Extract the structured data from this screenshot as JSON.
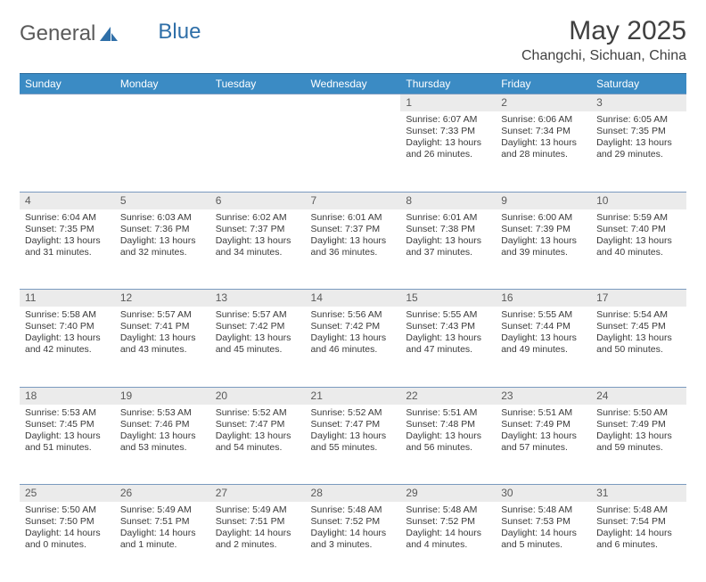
{
  "logo": {
    "text_a": "General",
    "text_b": "Blue"
  },
  "title": "May 2025",
  "location": "Changchi, Sichuan, China",
  "colors": {
    "header_bg": "#3b8bc4",
    "header_text": "#ffffff",
    "daynum_bg": "#ebebeb",
    "daynum_text": "#5a5a5a",
    "body_text": "#3a3a3a",
    "row_divider": "#7a9abf",
    "logo_gray": "#5a5a5a",
    "logo_blue": "#2f6fa8"
  },
  "typography": {
    "month_title_size": 30,
    "location_size": 16,
    "header_size": 12,
    "daynum_size": 12,
    "cell_size": 10.5
  },
  "weekdays": [
    "Sunday",
    "Monday",
    "Tuesday",
    "Wednesday",
    "Thursday",
    "Friday",
    "Saturday"
  ],
  "weeks": [
    [
      null,
      null,
      null,
      null,
      {
        "n": "1",
        "sr": "Sunrise: 6:07 AM",
        "ss": "Sunset: 7:33 PM",
        "dl": "Daylight: 13 hours and 26 minutes."
      },
      {
        "n": "2",
        "sr": "Sunrise: 6:06 AM",
        "ss": "Sunset: 7:34 PM",
        "dl": "Daylight: 13 hours and 28 minutes."
      },
      {
        "n": "3",
        "sr": "Sunrise: 6:05 AM",
        "ss": "Sunset: 7:35 PM",
        "dl": "Daylight: 13 hours and 29 minutes."
      }
    ],
    [
      {
        "n": "4",
        "sr": "Sunrise: 6:04 AM",
        "ss": "Sunset: 7:35 PM",
        "dl": "Daylight: 13 hours and 31 minutes."
      },
      {
        "n": "5",
        "sr": "Sunrise: 6:03 AM",
        "ss": "Sunset: 7:36 PM",
        "dl": "Daylight: 13 hours and 32 minutes."
      },
      {
        "n": "6",
        "sr": "Sunrise: 6:02 AM",
        "ss": "Sunset: 7:37 PM",
        "dl": "Daylight: 13 hours and 34 minutes."
      },
      {
        "n": "7",
        "sr": "Sunrise: 6:01 AM",
        "ss": "Sunset: 7:37 PM",
        "dl": "Daylight: 13 hours and 36 minutes."
      },
      {
        "n": "8",
        "sr": "Sunrise: 6:01 AM",
        "ss": "Sunset: 7:38 PM",
        "dl": "Daylight: 13 hours and 37 minutes."
      },
      {
        "n": "9",
        "sr": "Sunrise: 6:00 AM",
        "ss": "Sunset: 7:39 PM",
        "dl": "Daylight: 13 hours and 39 minutes."
      },
      {
        "n": "10",
        "sr": "Sunrise: 5:59 AM",
        "ss": "Sunset: 7:40 PM",
        "dl": "Daylight: 13 hours and 40 minutes."
      }
    ],
    [
      {
        "n": "11",
        "sr": "Sunrise: 5:58 AM",
        "ss": "Sunset: 7:40 PM",
        "dl": "Daylight: 13 hours and 42 minutes."
      },
      {
        "n": "12",
        "sr": "Sunrise: 5:57 AM",
        "ss": "Sunset: 7:41 PM",
        "dl": "Daylight: 13 hours and 43 minutes."
      },
      {
        "n": "13",
        "sr": "Sunrise: 5:57 AM",
        "ss": "Sunset: 7:42 PM",
        "dl": "Daylight: 13 hours and 45 minutes."
      },
      {
        "n": "14",
        "sr": "Sunrise: 5:56 AM",
        "ss": "Sunset: 7:42 PM",
        "dl": "Daylight: 13 hours and 46 minutes."
      },
      {
        "n": "15",
        "sr": "Sunrise: 5:55 AM",
        "ss": "Sunset: 7:43 PM",
        "dl": "Daylight: 13 hours and 47 minutes."
      },
      {
        "n": "16",
        "sr": "Sunrise: 5:55 AM",
        "ss": "Sunset: 7:44 PM",
        "dl": "Daylight: 13 hours and 49 minutes."
      },
      {
        "n": "17",
        "sr": "Sunrise: 5:54 AM",
        "ss": "Sunset: 7:45 PM",
        "dl": "Daylight: 13 hours and 50 minutes."
      }
    ],
    [
      {
        "n": "18",
        "sr": "Sunrise: 5:53 AM",
        "ss": "Sunset: 7:45 PM",
        "dl": "Daylight: 13 hours and 51 minutes."
      },
      {
        "n": "19",
        "sr": "Sunrise: 5:53 AM",
        "ss": "Sunset: 7:46 PM",
        "dl": "Daylight: 13 hours and 53 minutes."
      },
      {
        "n": "20",
        "sr": "Sunrise: 5:52 AM",
        "ss": "Sunset: 7:47 PM",
        "dl": "Daylight: 13 hours and 54 minutes."
      },
      {
        "n": "21",
        "sr": "Sunrise: 5:52 AM",
        "ss": "Sunset: 7:47 PM",
        "dl": "Daylight: 13 hours and 55 minutes."
      },
      {
        "n": "22",
        "sr": "Sunrise: 5:51 AM",
        "ss": "Sunset: 7:48 PM",
        "dl": "Daylight: 13 hours and 56 minutes."
      },
      {
        "n": "23",
        "sr": "Sunrise: 5:51 AM",
        "ss": "Sunset: 7:49 PM",
        "dl": "Daylight: 13 hours and 57 minutes."
      },
      {
        "n": "24",
        "sr": "Sunrise: 5:50 AM",
        "ss": "Sunset: 7:49 PM",
        "dl": "Daylight: 13 hours and 59 minutes."
      }
    ],
    [
      {
        "n": "25",
        "sr": "Sunrise: 5:50 AM",
        "ss": "Sunset: 7:50 PM",
        "dl": "Daylight: 14 hours and 0 minutes."
      },
      {
        "n": "26",
        "sr": "Sunrise: 5:49 AM",
        "ss": "Sunset: 7:51 PM",
        "dl": "Daylight: 14 hours and 1 minute."
      },
      {
        "n": "27",
        "sr": "Sunrise: 5:49 AM",
        "ss": "Sunset: 7:51 PM",
        "dl": "Daylight: 14 hours and 2 minutes."
      },
      {
        "n": "28",
        "sr": "Sunrise: 5:48 AM",
        "ss": "Sunset: 7:52 PM",
        "dl": "Daylight: 14 hours and 3 minutes."
      },
      {
        "n": "29",
        "sr": "Sunrise: 5:48 AM",
        "ss": "Sunset: 7:52 PM",
        "dl": "Daylight: 14 hours and 4 minutes."
      },
      {
        "n": "30",
        "sr": "Sunrise: 5:48 AM",
        "ss": "Sunset: 7:53 PM",
        "dl": "Daylight: 14 hours and 5 minutes."
      },
      {
        "n": "31",
        "sr": "Sunrise: 5:48 AM",
        "ss": "Sunset: 7:54 PM",
        "dl": "Daylight: 14 hours and 6 minutes."
      }
    ]
  ]
}
